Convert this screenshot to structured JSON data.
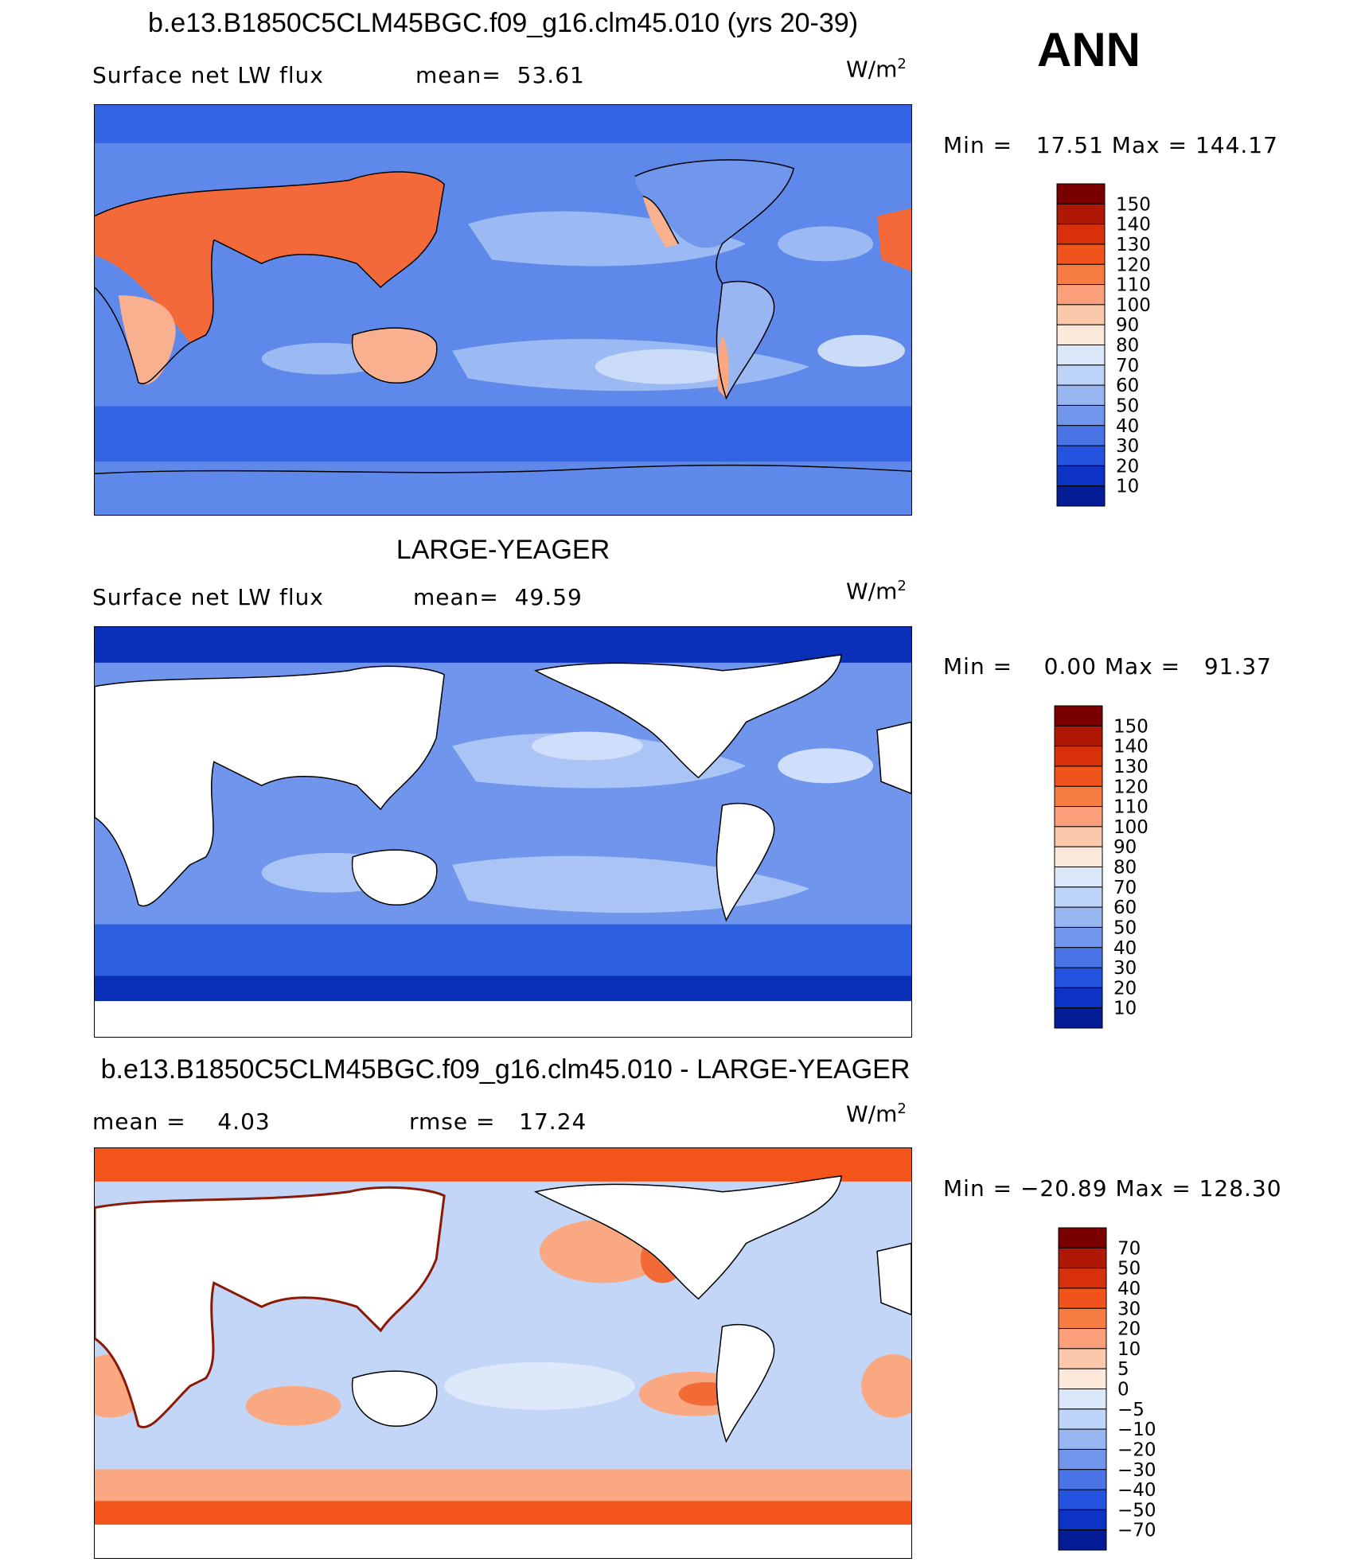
{
  "season": "ANN",
  "panels": [
    {
      "title": "b.e13.B1850C5CLM45BGC.f09_g16.clm45.010 (yrs 20-39)",
      "left_label": "Surface net LW flux",
      "center_label": "mean=  53.61",
      "units": "W/m",
      "units_sup": "2",
      "minmax": "Min =   17.51 Max = 144.17",
      "colorbar_labels": [
        "150",
        "140",
        "130",
        "120",
        "110",
        "100",
        "90",
        "80",
        "70",
        "60",
        "50",
        "40",
        "30",
        "20",
        "10"
      ],
      "colorbar_colors": [
        "#7a0000",
        "#b01806",
        "#d7300a",
        "#f0541c",
        "#f77c44",
        "#fba07a",
        "#fcc8ab",
        "#fde9da",
        "#dbe8fa",
        "#bdd3f7",
        "#98b7f2",
        "#7097ec",
        "#4a74e6",
        "#2353df",
        "#0c33c3",
        "#041c96"
      ],
      "map_colors": {
        "ocean": "#5e88ea",
        "ocean_light": "#9bbaf3",
        "ocean_pale": "#cbdcf8",
        "southern": "#3263e2",
        "land_warm": "#f4693a",
        "land_mild": "#f9b08e",
        "land_pale": "#fde0cd",
        "antarctica": "#2a5be0"
      }
    },
    {
      "title": "LARGE-YEAGER",
      "left_label": "Surface net LW flux",
      "center_label": "mean=  49.59",
      "units": "W/m",
      "units_sup": "2",
      "minmax": "Min =    0.00 Max =   91.37",
      "colorbar_labels": [
        "150",
        "140",
        "130",
        "120",
        "110",
        "100",
        "90",
        "80",
        "70",
        "60",
        "50",
        "40",
        "30",
        "20",
        "10"
      ],
      "colorbar_colors": [
        "#7a0000",
        "#b01806",
        "#d7300a",
        "#f0541c",
        "#f77c44",
        "#fba07a",
        "#fcc8ab",
        "#fde9da",
        "#dbe8fa",
        "#bdd3f7",
        "#98b7f2",
        "#7097ec",
        "#4a74e6",
        "#2353df",
        "#0c33c3",
        "#041c96"
      ],
      "map_colors": {
        "ocean": "#6f95ec",
        "ocean_light": "#a9c4f5",
        "ocean_pale": "#cfdefa",
        "southern": "#2d5fe1",
        "polar": "#0a2fb8",
        "land": "#ffffff"
      }
    },
    {
      "title": "b.e13.B1850C5CLM45BGC.f09_g16.clm45.010 - LARGE-YEAGER",
      "left_label": "mean =    4.03",
      "center_label": "rmse =   17.24",
      "units": "W/m",
      "units_sup": "2",
      "minmax": "Min = −20.89 Max = 128.30",
      "colorbar_labels": [
        "70",
        "50",
        "40",
        "30",
        "20",
        "10",
        "5",
        "0",
        "−5",
        "−10",
        "−20",
        "−30",
        "−40",
        "−50",
        "−70"
      ],
      "colorbar_colors": [
        "#7a0000",
        "#b01806",
        "#d7300a",
        "#f0541c",
        "#f77c44",
        "#fba07a",
        "#fcc8ab",
        "#fde9da",
        "#dbe8fa",
        "#bdd3f7",
        "#98b7f2",
        "#7097ec",
        "#4a74e6",
        "#2353df",
        "#0c33c3",
        "#041c96"
      ],
      "map_colors": {
        "ocean": "#c3d6f8",
        "ocean_light": "#dde8fb",
        "warm": "#f9a882",
        "hot": "#f26a35",
        "polar": "#f2541a",
        "land": "#ffffff"
      }
    }
  ]
}
